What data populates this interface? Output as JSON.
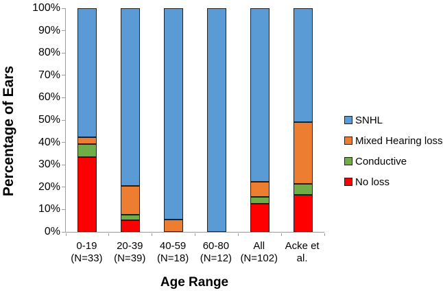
{
  "chart_data": {
    "type": "bar",
    "stacked": true,
    "title": "",
    "xlabel": "Age Range",
    "ylabel": "Percentage of Ears",
    "ylim": [
      0,
      100
    ],
    "grid": false,
    "yticks": [
      "100%",
      "90%",
      "80%",
      "70%",
      "60%",
      "50%",
      "40%",
      "30%",
      "20%",
      "10%",
      "0%"
    ],
    "categories": [
      [
        "0-19",
        "(N=33)"
      ],
      [
        "20-39",
        "(N=39)"
      ],
      [
        "40-59",
        "(N=18)"
      ],
      [
        "60-80",
        "(N=12)"
      ],
      [
        "All",
        "(N=102)"
      ],
      [
        "Acke et",
        "al."
      ]
    ],
    "series": [
      {
        "name": "No loss",
        "color": "#ff0000",
        "values": [
          33.3,
          5.1,
          0,
          0,
          12.7,
          16.5
        ]
      },
      {
        "name": "Conductive",
        "color": "#70ad47",
        "values": [
          6.1,
          2.6,
          0,
          0,
          2.9,
          5.0
        ]
      },
      {
        "name": "Mixed Hearing loss",
        "color": "#ed7d31",
        "values": [
          3.0,
          12.8,
          5.6,
          0,
          6.9,
          27.5
        ]
      },
      {
        "name": "SNHL",
        "color": "#5b9bd5",
        "values": [
          57.6,
          79.5,
          94.4,
          100,
          77.5,
          51.0
        ]
      }
    ],
    "legend": {
      "position": "right",
      "items": [
        "SNHL",
        "Mixed Hearing loss",
        "Conductive",
        "No loss"
      ]
    },
    "axis_color": "#9b9b9b",
    "bar_border_color": "#1f1f1f"
  }
}
